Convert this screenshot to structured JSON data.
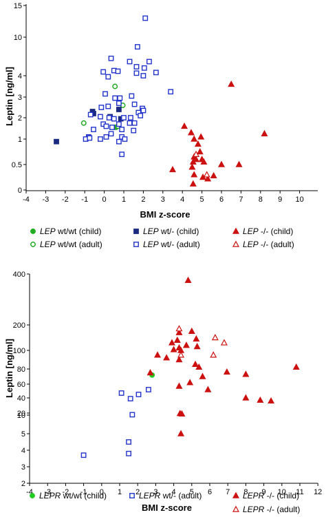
{
  "chart_data": [
    {
      "type": "scatter",
      "xlabel": "BMI z-score",
      "ylabel": "Leptin [ng/ml]",
      "xlim": [
        -4,
        10
      ],
      "x_ticks": [
        "-4",
        "-3",
        "-2",
        "-1",
        "0",
        "1",
        "2",
        "3",
        "4",
        "5",
        "6",
        "7",
        "8",
        "9",
        "10"
      ],
      "y_ticks": [
        {
          "value": 0,
          "label": "0"
        },
        {
          "value": 0.5,
          "label": "0.5"
        },
        {
          "value": 1,
          "label": "1"
        },
        {
          "value": 2,
          "label": "2"
        },
        {
          "value": 3,
          "label": "3"
        },
        {
          "value": 4,
          "label": "4"
        },
        {
          "value": 10,
          "label": "10"
        },
        {
          "value": 15,
          "label": "15"
        }
      ],
      "series": [
        {
          "gene": "LEP",
          "genotype": "wt/wt (child)",
          "marker": "circle",
          "filled": true,
          "color": "#22aa22",
          "points": [
            [
              0.6,
              1.55
            ]
          ]
        },
        {
          "gene": "LEP",
          "genotype": "wt/wt (adult)",
          "marker": "circle",
          "filled": false,
          "color": "#22aa22",
          "points": [
            [
              -1.05,
              1.75
            ],
            [
              0.55,
              3.5
            ],
            [
              0.95,
              2.6
            ],
            [
              0.7,
              1.6
            ]
          ]
        },
        {
          "gene": "LEP",
          "genotype": "wt/- (child)",
          "marker": "square",
          "filled": true,
          "color": "#1a2a80",
          "points": [
            [
              -2.45,
              0.95
            ],
            [
              -0.6,
              2.3
            ],
            [
              0.3,
              2.05
            ],
            [
              0.75,
              2.4
            ],
            [
              0.85,
              1.95
            ],
            [
              -0.55,
              2.2
            ]
          ]
        },
        {
          "gene": "LEP",
          "genotype": "wt/- (adult)",
          "marker": "square",
          "filled": false,
          "color": "#2233cc",
          "points": [
            [
              2.1,
              13
            ],
            [
              1.7,
              8.5
            ],
            [
              0.35,
              6.7
            ],
            [
              1.3,
              6.2
            ],
            [
              2.3,
              6.2
            ],
            [
              1.65,
              5.4
            ],
            [
              2.05,
              5.2
            ],
            [
              -0.05,
              4.6
            ],
            [
              0.5,
              4.8
            ],
            [
              0.7,
              4.7
            ],
            [
              1.65,
              4.4
            ],
            [
              2.65,
              4.5
            ],
            [
              0.2,
              3.95
            ],
            [
              2.0,
              4.0
            ],
            [
              3.4,
              3.25
            ],
            [
              1.4,
              3.05
            ],
            [
              0.05,
              3.15
            ],
            [
              0.55,
              2.95
            ],
            [
              0.8,
              2.95
            ],
            [
              -0.15,
              2.5
            ],
            [
              0.75,
              2.7
            ],
            [
              1.55,
              2.65
            ],
            [
              1.95,
              2.45
            ],
            [
              0.2,
              2.55
            ],
            [
              1.75,
              2.25
            ],
            [
              -0.7,
              2.15
            ],
            [
              -0.2,
              2.05
            ],
            [
              0.25,
              2.0
            ],
            [
              0.5,
              1.95
            ],
            [
              1.0,
              2.0
            ],
            [
              1.35,
              2.0
            ],
            [
              2.0,
              2.35
            ],
            [
              1.85,
              2.1
            ],
            [
              1.3,
              1.75
            ],
            [
              -0.05,
              1.7
            ],
            [
              0.1,
              1.6
            ],
            [
              0.4,
              1.55
            ],
            [
              0.75,
              1.7
            ],
            [
              1.55,
              1.75
            ],
            [
              0.9,
              1.45
            ],
            [
              1.5,
              1.4
            ],
            [
              -0.55,
              1.45
            ],
            [
              -0.8,
              1.1
            ],
            [
              -0.95,
              1.0
            ],
            [
              -0.75,
              1.05
            ],
            [
              0.1,
              1.1
            ],
            [
              0.35,
              1.25
            ],
            [
              0.9,
              1.1
            ],
            [
              1.05,
              1.0
            ],
            [
              0.75,
              0.95
            ],
            [
              -0.2,
              1.0
            ],
            [
              0.9,
              0.7
            ]
          ]
        },
        {
          "gene": "LEP",
          "genotype": "-/- (child)",
          "marker": "triangle",
          "filled": true,
          "color": "#cc1111",
          "points": [
            [
              6.5,
              3.6
            ],
            [
              8.2,
              1.25
            ],
            [
              4.1,
              1.6
            ],
            [
              4.45,
              1.3
            ],
            [
              4.95,
              1.1
            ],
            [
              4.6,
              1.0
            ],
            [
              4.8,
              0.9
            ],
            [
              4.9,
              0.75
            ],
            [
              4.6,
              0.65
            ],
            [
              5.0,
              0.6
            ],
            [
              4.7,
              0.6
            ],
            [
              4.55,
              0.55
            ],
            [
              5.1,
              0.55
            ],
            [
              6.0,
              0.5
            ],
            [
              6.9,
              0.5
            ],
            [
              4.5,
              0.45
            ],
            [
              3.5,
              0.4
            ],
            [
              4.6,
              0.3
            ],
            [
              5.05,
              0.25
            ],
            [
              5.3,
              0.22
            ],
            [
              4.55,
              0.12
            ],
            [
              5.6,
              0.28
            ]
          ]
        },
        {
          "gene": "LEP",
          "genotype": "-/- (adult)",
          "marker": "triangle",
          "filled": false,
          "color": "#cc1111",
          "points": [
            [
              4.7,
              0.7
            ],
            [
              5.25,
              0.3
            ]
          ]
        }
      ]
    },
    {
      "type": "scatter",
      "xlabel": "BMI z-score",
      "ylabel": "Leptin [ng/ml]",
      "xlim": [
        -4,
        12
      ],
      "x_ticks": [
        "-4",
        "-3",
        "-2",
        "-1",
        "0",
        "1",
        "2",
        "3",
        "4",
        "5",
        "6",
        "7",
        "8",
        "9",
        "10",
        "11",
        "12"
      ],
      "y_ticks": [
        {
          "value": 2,
          "label": "2"
        },
        {
          "value": 3,
          "label": "3"
        },
        {
          "value": 4,
          "label": "4"
        },
        {
          "value": 5,
          "label": "5"
        },
        {
          "value": 10,
          "label": "10"
        },
        {
          "value": 20,
          "label": "20"
        },
        {
          "value": 40,
          "label": "40"
        },
        {
          "value": 60,
          "label": "60"
        },
        {
          "value": 80,
          "label": "80"
        },
        {
          "value": 100,
          "label": "100"
        },
        {
          "value": 200,
          "label": "200"
        },
        {
          "value": 400,
          "label": "400"
        }
      ],
      "series": [
        {
          "gene": "LEPR",
          "genotype": "wt/wt (child)",
          "marker": "circle",
          "filled": true,
          "color": "#22cc22",
          "points": [
            [
              2.8,
              72
            ]
          ]
        },
        {
          "gene": "LEPR",
          "genotype": "wt/- (adult)",
          "marker": "square",
          "filled": false,
          "color": "#2233cc",
          "points": [
            [
              -1.0,
              3.7
            ],
            [
              1.1,
              47
            ],
            [
              1.6,
              39
            ],
            [
              2.05,
              45
            ],
            [
              2.6,
              52
            ],
            [
              1.5,
              4.5
            ],
            [
              1.5,
              3.8
            ],
            [
              1.7,
              12
            ]
          ]
        },
        {
          "gene": "LEPR",
          "genotype": "-/- (child)",
          "marker": "triangle",
          "filled": true,
          "color": "#cc1111",
          "points": [
            [
              4.8,
              375
            ],
            [
              4.3,
              170
            ],
            [
              5.0,
              175
            ],
            [
              3.9,
              130
            ],
            [
              4.2,
              140
            ],
            [
              5.25,
              145
            ],
            [
              4.3,
              110
            ],
            [
              4.7,
              120
            ],
            [
              5.3,
              115
            ],
            [
              4.0,
              103
            ],
            [
              4.4,
              100
            ],
            [
              3.6,
              92
            ],
            [
              3.1,
              95
            ],
            [
              5.2,
              85
            ],
            [
              4.3,
              90
            ],
            [
              5.4,
              82
            ],
            [
              2.7,
              75
            ],
            [
              5.6,
              70
            ],
            [
              4.9,
              62
            ],
            [
              4.3,
              57
            ],
            [
              5.9,
              52
            ],
            [
              6.95,
              76
            ],
            [
              8.0,
              73
            ],
            [
              10.8,
              82
            ],
            [
              8.0,
              40
            ],
            [
              8.8,
              37
            ],
            [
              9.4,
              36
            ],
            [
              4.35,
              18
            ],
            [
              4.45,
              16
            ],
            [
              4.4,
              5
            ]
          ]
        },
        {
          "gene": "LEPR",
          "genotype": "-/- (adult)",
          "marker": "triangle",
          "filled": false,
          "color": "#cc1111",
          "points": [
            [
              4.3,
              185
            ],
            [
              6.3,
              150
            ],
            [
              6.8,
              130
            ],
            [
              4.4,
              95
            ],
            [
              6.2,
              95
            ]
          ]
        }
      ]
    }
  ],
  "legends": [
    {
      "items": [
        {
          "gene": "LEP",
          "text": " wt/wt (child)",
          "marker": "circle",
          "filled": true,
          "color": "#22aa22"
        },
        {
          "gene": "LEP",
          "text": " wt/wt (adult)",
          "marker": "circle",
          "filled": false,
          "color": "#22aa22"
        },
        {
          "gene": "LEP",
          "text": " wt/- (child)",
          "marker": "square",
          "filled": true,
          "color": "#1a2a80"
        },
        {
          "gene": "LEP",
          "text": " wt/- (adult)",
          "marker": "square",
          "filled": false,
          "color": "#2233cc"
        },
        {
          "gene": "LEP",
          "text": " -/- (child)",
          "marker": "triangle",
          "filled": true,
          "color": "#cc1111"
        },
        {
          "gene": "LEP",
          "text": " -/- (adult)",
          "marker": "triangle",
          "filled": false,
          "color": "#cc1111"
        }
      ]
    },
    {
      "items": [
        {
          "gene": "LEPR",
          "text": " wt/wt (child)",
          "marker": "circle",
          "filled": true,
          "color": "#22cc22"
        },
        {
          "gene": "LEPR",
          "text": " wt/- (adult)",
          "marker": "square",
          "filled": false,
          "color": "#2233cc"
        },
        {
          "gene": "LEPR",
          "text": " -/- (child)",
          "marker": "triangle",
          "filled": true,
          "color": "#cc1111"
        },
        {
          "gene": "LEPR",
          "text": " -/- (adult)",
          "marker": "triangle",
          "filled": false,
          "color": "#cc1111"
        }
      ]
    }
  ]
}
